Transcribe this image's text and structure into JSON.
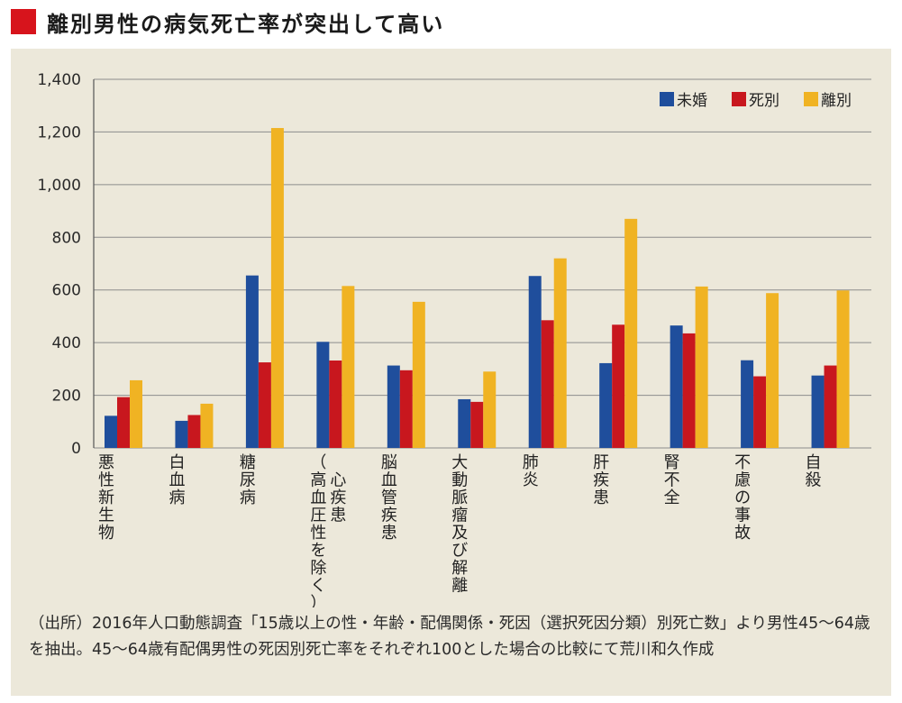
{
  "title": "離別男性の病気死亡率が突出して高い",
  "colors": {
    "title_marker": "#d7141c",
    "background_panel": "#ece8da",
    "gridline": "#8c8c8c"
  },
  "source_note": "（出所）2016年人口動態調査「15歳以上の性・年齢・配偶関係・死因（選択死因分類）別死亡数」より男性45〜64歳を抽出。45〜64歳有配偶男性の死因別死亡率をそれぞれ100とした場合の比較にて荒川和久作成",
  "chart_data": {
    "type": "bar",
    "title": "",
    "xlabel": "",
    "ylabel": "",
    "ylim": [
      0,
      1400
    ],
    "yticks": [
      0,
      200,
      400,
      600,
      800,
      1000,
      1200,
      1400
    ],
    "ytick_labels": [
      "0",
      "200",
      "400",
      "600",
      "800",
      "1,000",
      "1,200",
      "1,400"
    ],
    "grid": true,
    "legend_position": "top-right",
    "categories": [
      "悪性新生物",
      "白血病",
      "糖尿病",
      "心疾患（高血圧性を除く）",
      "脳血管疾患",
      "大動脈瘤及び解離",
      "肺炎",
      "肝疾患",
      "腎不全",
      "不慮の事故",
      "自殺"
    ],
    "category_lines": [
      [
        [
          "悪性新生物",
          0
        ]
      ],
      [
        [
          "白血病",
          0
        ]
      ],
      [
        [
          "糖尿病",
          0
        ]
      ],
      [
        [
          "心疾患",
          1
        ],
        [
          "（高血圧性を除く）",
          0
        ]
      ],
      [
        [
          "脳血管疾患",
          0
        ]
      ],
      [
        [
          "大動脈瘤及び解離",
          0
        ]
      ],
      [
        [
          "肺炎",
          0
        ]
      ],
      [
        [
          "肝疾患",
          0
        ]
      ],
      [
        [
          "腎不全",
          0
        ]
      ],
      [
        [
          "不慮の事故",
          0
        ]
      ],
      [
        [
          "自殺",
          0
        ]
      ]
    ],
    "series": [
      {
        "name": "未婚",
        "color": "#1f4e9c",
        "values": [
          122,
          103,
          655,
          403,
          313,
          185,
          653,
          322,
          465,
          333,
          275
        ]
      },
      {
        "name": "死別",
        "color": "#c8171e",
        "values": [
          193,
          125,
          325,
          332,
          295,
          175,
          485,
          468,
          435,
          272,
          313
        ]
      },
      {
        "name": "離別",
        "color": "#f0b323",
        "values": [
          257,
          168,
          1215,
          615,
          555,
          290,
          720,
          870,
          613,
          588,
          598
        ]
      }
    ]
  }
}
